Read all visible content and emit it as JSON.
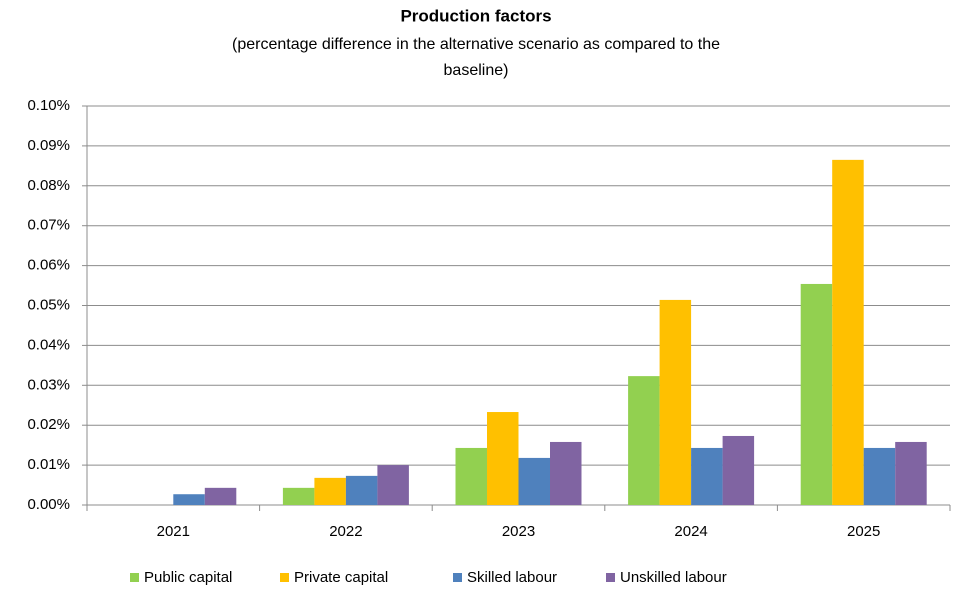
{
  "chart_data": {
    "type": "bar",
    "title": "Production factors",
    "subtitle": [
      "(percentage difference in the alternative scenario as compared to the",
      "baseline)"
    ],
    "categories": [
      "2021",
      "2022",
      "2023",
      "2024",
      "2025"
    ],
    "series": [
      {
        "name": "Public capital",
        "color": "#92d050",
        "values": [
          0,
          0.0043,
          0.0143,
          0.0323,
          0.0554
        ]
      },
      {
        "name": "Private capital",
        "color": "#ffc000",
        "values": [
          0,
          0.0068,
          0.0233,
          0.0514,
          0.0865
        ]
      },
      {
        "name": "Skilled labour",
        "color": "#4f81bd",
        "values": [
          0.0027,
          0.0073,
          0.0118,
          0.0143,
          0.0143
        ]
      },
      {
        "name": "Unskilled labour",
        "color": "#8064a2",
        "values": [
          0.0043,
          0.01,
          0.0158,
          0.0173,
          0.0158
        ]
      }
    ],
    "ylim": [
      0,
      0.1
    ],
    "yticks": [
      {
        "value": 0,
        "label": "0.00%"
      },
      {
        "value": 0.01,
        "label": "0.01%"
      },
      {
        "value": 0.02,
        "label": "0.02%"
      },
      {
        "value": 0.03,
        "label": "0.03%"
      },
      {
        "value": 0.04,
        "label": "0.04%"
      },
      {
        "value": 0.05,
        "label": "0.05%"
      },
      {
        "value": 0.06,
        "label": "0.06%"
      },
      {
        "value": 0.07,
        "label": "0.07%"
      },
      {
        "value": 0.08,
        "label": "0.08%"
      },
      {
        "value": 0.09,
        "label": "0.09%"
      },
      {
        "value": 0.1,
        "label": "0.10%"
      }
    ],
    "grid": true,
    "legend": "bottom"
  }
}
